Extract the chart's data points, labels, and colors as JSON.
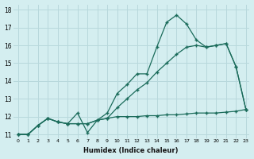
{
  "xlabel": "Humidex (Indice chaleur)",
  "bg_color": "#d4eef0",
  "grid_color": "#b8d8dc",
  "line_color": "#1a6b5a",
  "xlim": [
    -0.5,
    23.3
  ],
  "ylim": [
    10.8,
    18.3
  ],
  "xticks": [
    0,
    1,
    2,
    3,
    4,
    5,
    6,
    7,
    8,
    9,
    10,
    11,
    12,
    13,
    14,
    15,
    16,
    17,
    18,
    19,
    20,
    21,
    22,
    23
  ],
  "yticks": [
    11,
    12,
    13,
    14,
    15,
    16,
    17,
    18
  ],
  "line1_x": [
    0,
    1,
    2,
    3,
    4,
    5,
    6,
    7,
    8,
    9,
    10,
    11,
    12,
    13,
    14,
    15,
    16,
    17,
    18,
    19,
    20,
    21,
    22,
    23
  ],
  "line1_y": [
    11.0,
    11.0,
    11.5,
    11.9,
    11.7,
    11.6,
    11.6,
    11.6,
    11.8,
    11.9,
    12.0,
    12.0,
    12.0,
    12.05,
    12.05,
    12.1,
    12.1,
    12.15,
    12.2,
    12.2,
    12.2,
    12.25,
    12.3,
    12.4
  ],
  "line2_x": [
    0,
    1,
    2,
    3,
    4,
    5,
    6,
    7,
    8,
    9,
    10,
    11,
    12,
    13,
    14,
    15,
    16,
    17,
    18,
    19,
    20,
    21,
    22,
    23
  ],
  "line2_y": [
    11.0,
    11.0,
    11.5,
    11.9,
    11.7,
    11.6,
    11.6,
    11.6,
    11.8,
    11.9,
    12.5,
    13.0,
    13.5,
    13.9,
    14.5,
    15.0,
    15.5,
    15.9,
    16.0,
    15.9,
    16.0,
    16.1,
    14.8,
    12.4
  ],
  "line3_x": [
    0,
    1,
    2,
    3,
    4,
    5,
    6,
    7,
    8,
    9,
    10,
    11,
    12,
    13,
    14,
    15,
    16,
    17,
    18,
    19,
    20,
    21,
    22,
    23
  ],
  "line3_y": [
    11.0,
    11.0,
    11.5,
    11.9,
    11.7,
    11.6,
    12.2,
    11.1,
    11.8,
    12.2,
    13.3,
    13.8,
    14.4,
    14.4,
    15.9,
    17.3,
    17.7,
    17.2,
    16.3,
    15.9,
    16.0,
    16.1,
    14.8,
    12.4
  ]
}
